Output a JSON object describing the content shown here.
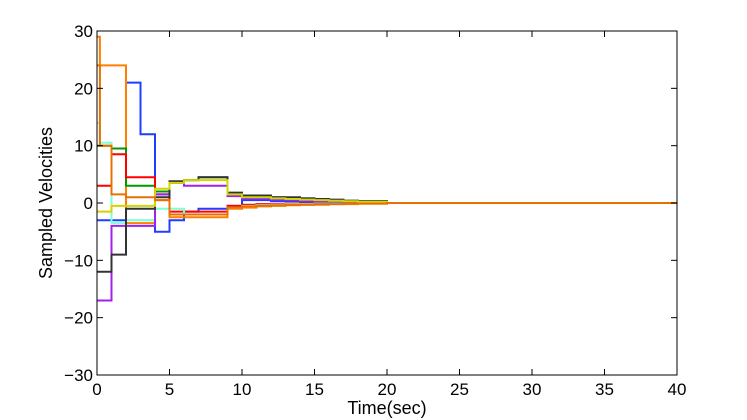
{
  "chart_data": {
    "type": "line",
    "step": true,
    "xlabel": "Time(sec)",
    "ylabel": "Sampled Velocities",
    "xlim": [
      0,
      40
    ],
    "ylim": [
      -30,
      30
    ],
    "xticks": [
      "0",
      "5",
      "10",
      "15",
      "20",
      "25",
      "30",
      "35",
      "40"
    ],
    "yticks": [
      "-30",
      "-20",
      "-10",
      "0",
      "10",
      "20",
      "30"
    ],
    "grid": false,
    "x": [
      0,
      0.2,
      1,
      2,
      3,
      4,
      5,
      6,
      7,
      9,
      10,
      11,
      12,
      13,
      14,
      15,
      16,
      17,
      18,
      20,
      40
    ],
    "series": [
      {
        "color": "#1f3fff",
        "values": [
          -3,
          -3,
          -3,
          21,
          12,
          -5,
          -3,
          -1.5,
          -1,
          -0.5,
          0.5,
          0.5,
          0.3,
          0.3,
          0.2,
          0.2,
          0.1,
          0.1,
          0.1,
          0,
          0
        ]
      },
      {
        "color": "#ff7f00",
        "values": [
          29,
          24,
          24,
          -3.5,
          -3.5,
          0.5,
          -2.5,
          -2.5,
          -2.5,
          -1,
          -0.8,
          -0.6,
          -0.5,
          -0.4,
          -0.3,
          -0.3,
          -0.2,
          -0.2,
          -0.1,
          0,
          0
        ]
      },
      {
        "color": "#009900",
        "values": [
          10,
          10,
          9.5,
          3,
          3,
          2,
          3.5,
          4,
          4.5,
          1.8,
          1.2,
          1.2,
          1,
          0.9,
          0.8,
          0.6,
          0.5,
          0.4,
          0.3,
          0,
          0
        ]
      },
      {
        "color": "#ff0000",
        "values": [
          3,
          3,
          8.5,
          4.5,
          4.5,
          1.5,
          -1.5,
          -1.5,
          -1.5,
          -0.5,
          -0.3,
          -0.2,
          -0.2,
          -0.1,
          -0.1,
          -0.1,
          -0.1,
          0,
          0,
          0,
          0
        ]
      },
      {
        "color": "#7fffd4",
        "values": [
          14,
          10.5,
          -3.5,
          -3,
          -3,
          -1,
          -1,
          -2,
          -2,
          -0.8,
          -0.5,
          -0.4,
          -0.3,
          -0.2,
          -0.2,
          -0.1,
          -0.1,
          0,
          0,
          0,
          0
        ]
      },
      {
        "color": "#a020f0",
        "values": [
          -17,
          -17,
          -4,
          -4,
          -4,
          1.5,
          3.5,
          3,
          3,
          1.2,
          0.8,
          0.8,
          0.6,
          0.5,
          0.4,
          0.3,
          0.3,
          0.2,
          0.1,
          0,
          0
        ]
      },
      {
        "color": "#333333",
        "values": [
          -12,
          -12,
          -9,
          -1,
          -1,
          1,
          3.8,
          4,
          4.5,
          1.8,
          1.3,
          1.3,
          1,
          1,
          0.8,
          0.7,
          0.6,
          0.4,
          0.3,
          0,
          0
        ]
      },
      {
        "color": "#d4d400",
        "values": [
          -1.5,
          -1.5,
          -0.5,
          -0.5,
          -0.5,
          2.5,
          3.5,
          4,
          4,
          1.5,
          1,
          1,
          0.8,
          0.7,
          0.6,
          0.5,
          0.4,
          0.3,
          0.2,
          0,
          0
        ]
      },
      {
        "color": "#e87000",
        "values": [
          24,
          10,
          1.5,
          1,
          1,
          0.5,
          -2,
          -2,
          -2,
          -0.8,
          -0.6,
          -0.5,
          -0.4,
          -0.3,
          -0.3,
          -0.2,
          -0.2,
          -0.1,
          -0.1,
          0,
          0
        ]
      }
    ]
  }
}
